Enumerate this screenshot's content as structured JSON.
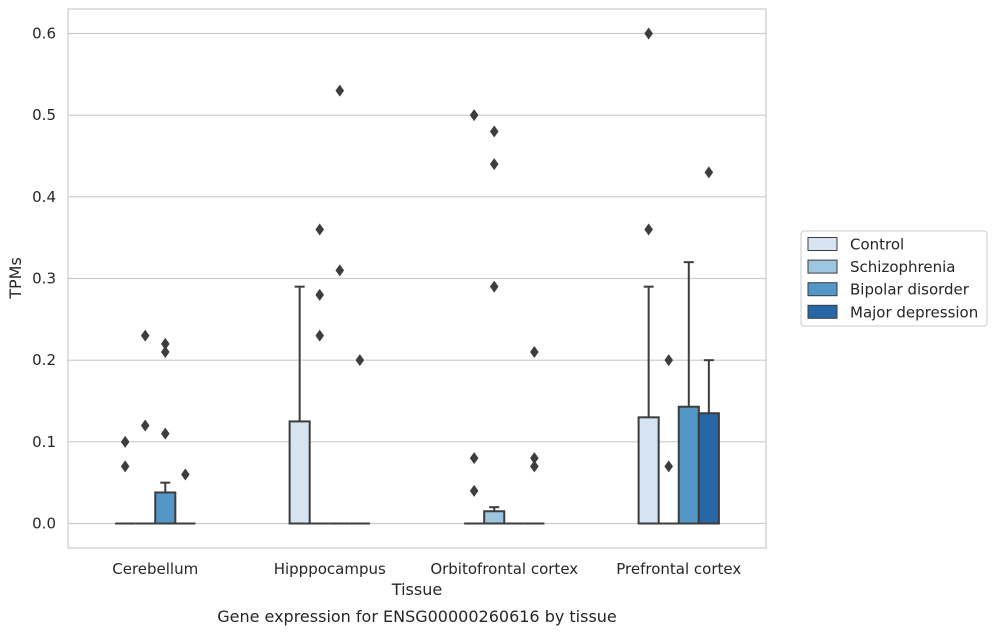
{
  "chart_data": {
    "type": "box",
    "title": "",
    "xlabel": "Tissue",
    "ylabel": "TPMs",
    "caption": "Gene expression for ENSG00000260616 by tissue",
    "ylim": [
      -0.03,
      0.63
    ],
    "yticks": [
      0.0,
      0.1,
      0.2,
      0.3,
      0.4,
      0.5,
      0.6
    ],
    "ytick_labels": [
      "0.0",
      "0.1",
      "0.2",
      "0.3",
      "0.4",
      "0.5",
      "0.6"
    ],
    "grid": "horizontal",
    "legend_position": "right",
    "categories": [
      "Cerebellum",
      "Hipppocampus",
      "Orbitofrontal cortex",
      "Prefrontal cortex"
    ],
    "series": [
      {
        "name": "Control",
        "color": "#d6e4f1",
        "boxes": [
          {
            "q1": 0,
            "median": 0,
            "q3": 0,
            "whislo": 0,
            "whishi": 0,
            "fliers": [
              0.1,
              0.07
            ]
          },
          {
            "q1": 0,
            "median": 0,
            "q3": 0.125,
            "whislo": 0,
            "whishi": 0.29,
            "fliers": []
          },
          {
            "q1": 0,
            "median": 0,
            "q3": 0,
            "whislo": 0,
            "whishi": 0,
            "fliers": [
              0.5,
              0.08,
              0.04
            ]
          },
          {
            "q1": 0,
            "median": 0,
            "q3": 0.13,
            "whislo": 0,
            "whishi": 0.29,
            "fliers": [
              0.6,
              0.36
            ]
          }
        ]
      },
      {
        "name": "Schizophrenia",
        "color": "#9ec6df",
        "boxes": [
          {
            "q1": 0,
            "median": 0,
            "q3": 0,
            "whislo": 0,
            "whishi": 0,
            "fliers": [
              0.23,
              0.12
            ]
          },
          {
            "q1": 0,
            "median": 0,
            "q3": 0,
            "whislo": 0,
            "whishi": 0,
            "fliers": [
              0.36,
              0.28,
              0.23
            ]
          },
          {
            "q1": 0,
            "median": 0,
            "q3": 0.015,
            "whislo": 0,
            "whishi": 0.02,
            "fliers": [
              0.48,
              0.44,
              0.29
            ]
          },
          {
            "q1": 0,
            "median": 0,
            "q3": 0,
            "whislo": 0,
            "whishi": 0,
            "fliers": [
              0.2,
              0.07
            ]
          }
        ]
      },
      {
        "name": "Bipolar disorder",
        "color": "#5297c7",
        "boxes": [
          {
            "q1": 0,
            "median": 0,
            "q3": 0.038,
            "whislo": 0,
            "whishi": 0.05,
            "fliers": [
              0.22,
              0.21,
              0.11
            ]
          },
          {
            "q1": 0,
            "median": 0,
            "q3": 0,
            "whislo": 0,
            "whishi": 0,
            "fliers": [
              0.53,
              0.31
            ]
          },
          {
            "q1": 0,
            "median": 0,
            "q3": 0,
            "whislo": 0,
            "whishi": 0,
            "fliers": []
          },
          {
            "q1": 0,
            "median": 0,
            "q3": 0.143,
            "whislo": 0,
            "whishi": 0.32,
            "fliers": []
          }
        ]
      },
      {
        "name": "Major depression",
        "color": "#2766a7",
        "boxes": [
          {
            "q1": 0,
            "median": 0,
            "q3": 0,
            "whislo": 0,
            "whishi": 0,
            "fliers": [
              0.06
            ]
          },
          {
            "q1": 0,
            "median": 0,
            "q3": 0,
            "whislo": 0,
            "whishi": 0,
            "fliers": [
              0.2
            ]
          },
          {
            "q1": 0,
            "median": 0,
            "q3": 0,
            "whislo": 0,
            "whishi": 0,
            "fliers": [
              0.21,
              0.08,
              0.07
            ]
          },
          {
            "q1": 0,
            "median": 0,
            "q3": 0.135,
            "whislo": 0,
            "whishi": 0.2,
            "fliers": [
              0.43
            ]
          }
        ]
      }
    ]
  }
}
